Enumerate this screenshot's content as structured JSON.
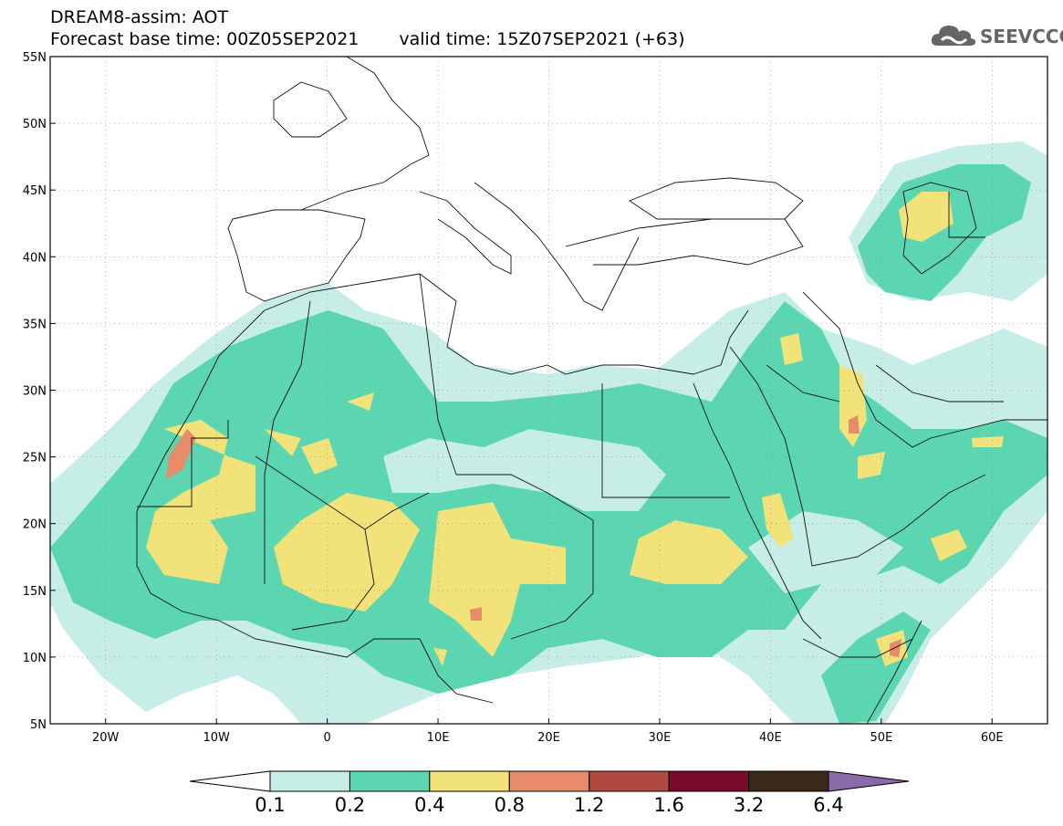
{
  "header": {
    "line1": "DREAM8-assim: AOT",
    "line2_base": "Forecast base time: 00Z05SEP2021",
    "line2_valid": "valid time: 15Z07SEP2021 (+63)"
  },
  "logo": {
    "text": "SEEVCCC",
    "icon": "cloud-icon"
  },
  "map": {
    "lon_range": [
      -25,
      65
    ],
    "lat_range": [
      5,
      55
    ],
    "lat_labels": [
      "55N",
      "50N",
      "45N",
      "40N",
      "35N",
      "30N",
      "25N",
      "20N",
      "15N",
      "10N",
      "5N"
    ],
    "lat_values": [
      55,
      50,
      45,
      40,
      35,
      30,
      25,
      20,
      15,
      10,
      5
    ],
    "lon_labels": [
      "20W",
      "10W",
      "0",
      "10E",
      "20E",
      "30E",
      "40E",
      "50E",
      "60E"
    ],
    "lon_values": [
      -20,
      -10,
      0,
      10,
      20,
      30,
      40,
      50,
      60
    ],
    "grid": "dotted",
    "colors": {
      "c1": "#c6eee7",
      "c2": "#5bd6b1",
      "c3": "#f1e27a",
      "c4": "#e88b69",
      "c5": "#b04a40",
      "c6": "#7a0a2a",
      "c7": "#3b2a1a",
      "c8": "#8a6aa8"
    }
  },
  "colorbar": {
    "labels": [
      "0.1",
      "0.2",
      "0.4",
      "0.8",
      "1.2",
      "1.6",
      "3.2",
      "6.4"
    ],
    "colors": [
      "#ffffff",
      "#c6eee7",
      "#5bd6b1",
      "#f1e27a",
      "#e88b69",
      "#b04a40",
      "#7a0a2a",
      "#3b2a1a",
      "#8a6aa8"
    ]
  }
}
